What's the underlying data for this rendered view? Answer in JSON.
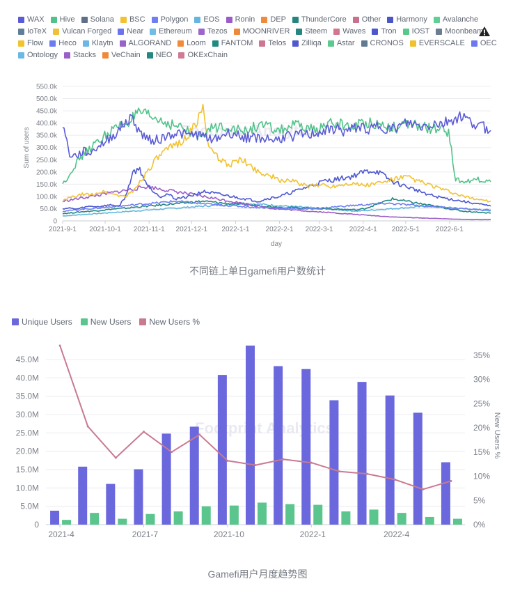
{
  "chart_data": [
    {
      "type": "line",
      "legend": [
        {
          "name": "WAX",
          "color": "#5b5bd6"
        },
        {
          "name": "Hive",
          "color": "#51c28a"
        },
        {
          "name": "Solana",
          "color": "#5f6f88"
        },
        {
          "name": "BSC",
          "color": "#f2c230"
        },
        {
          "name": "Polygon",
          "color": "#6f7ff2"
        },
        {
          "name": "EOS",
          "color": "#62b6e0"
        },
        {
          "name": "Ronin",
          "color": "#9b5cc9"
        },
        {
          "name": "DEP",
          "color": "#f08a3c"
        },
        {
          "name": "ThunderCore",
          "color": "#23867f"
        },
        {
          "name": "Other",
          "color": "#c9708d"
        },
        {
          "name": "Harmony",
          "color": "#4b55c8"
        },
        {
          "name": "Avalanche",
          "color": "#5fcf93"
        },
        {
          "name": "IoTeX",
          "color": "#5f7f98"
        },
        {
          "name": "Vulcan Forged",
          "color": "#efc13a"
        },
        {
          "name": "Near",
          "color": "#6b74ee"
        },
        {
          "name": "Ethereum",
          "color": "#6ebde6"
        },
        {
          "name": "Tezos",
          "color": "#9c66cc"
        },
        {
          "name": "MOONRIVER",
          "color": "#f0883a"
        },
        {
          "name": "Steem",
          "color": "#25877f"
        },
        {
          "name": "Waves",
          "color": "#d17891"
        },
        {
          "name": "Tron",
          "color": "#4c57cf"
        },
        {
          "name": "IOST",
          "color": "#59c98b"
        },
        {
          "name": "Moonbeam",
          "color": "#6a7d92"
        },
        {
          "name": "Flow",
          "color": "#f2c32c"
        },
        {
          "name": "Heco",
          "color": "#6b7cf0"
        },
        {
          "name": "Klaytn",
          "color": "#6ab8e3"
        },
        {
          "name": "ALGORAND",
          "color": "#9a63c9"
        },
        {
          "name": "Loom",
          "color": "#f18b3b"
        },
        {
          "name": "FANTOM",
          "color": "#208a82"
        },
        {
          "name": "Telos",
          "color": "#cf7792"
        },
        {
          "name": "Zilliqa",
          "color": "#5058d0"
        },
        {
          "name": "Astar",
          "color": "#5cc98e"
        },
        {
          "name": "CRONOS",
          "color": "#607a92"
        },
        {
          "name": "EVERSCALE",
          "color": "#f0c12f"
        },
        {
          "name": "OEC",
          "color": "#6c78ef"
        },
        {
          "name": "Ontology",
          "color": "#6ab9e4"
        },
        {
          "name": "Stacks",
          "color": "#9c5fc8"
        },
        {
          "name": "VeChain",
          "color": "#f08a3a"
        },
        {
          "name": "NEO",
          "color": "#248880"
        },
        {
          "name": "OKExChain",
          "color": "#d07a93"
        }
      ],
      "ylabel": "Sum of users",
      "xlabel": "day",
      "yticks": [
        "0",
        "50.0k",
        "100.0k",
        "150.0k",
        "200.0k",
        "250.0k",
        "300.0k",
        "350.0k",
        "400.0k",
        "450.0k",
        "500.0k",
        "550.0k"
      ],
      "ylim": [
        0,
        550000
      ],
      "xticks": [
        "2021-9-1",
        "2021-10-1",
        "2021-11-1",
        "2021-12-1",
        "2022-1-1",
        "2022-2-1",
        "2022-3-1",
        "2022-4-1",
        "2022-5-1",
        "2022-6-1"
      ],
      "x_range": [
        "2021-9-1",
        "2022-6-30"
      ],
      "series": [
        {
          "name": "WAX",
          "values": [
            400000,
            270000,
            265000,
            285000,
            275000,
            305000,
            320000,
            345000,
            370000,
            405000,
            420000,
            360000,
            340000,
            330000,
            335000,
            350000,
            360000,
            355000,
            350000,
            355000,
            345000,
            340000,
            335000,
            355000,
            360000,
            350000,
            340000,
            345000,
            335000,
            340000,
            330000,
            335000,
            350000,
            345000,
            355000,
            350000,
            360000,
            365000,
            370000,
            380000,
            365000,
            370000,
            385000,
            380000,
            375000,
            390000,
            380000,
            375000,
            385000,
            400000,
            395000,
            385000,
            390000,
            400000,
            395000,
            410000,
            420000,
            430000,
            405000,
            395000,
            385000,
            370000
          ]
        },
        {
          "name": "Hive",
          "values": [
            150000,
            190000,
            240000,
            270000,
            300000,
            320000,
            350000,
            370000,
            385000,
            400000,
            420000,
            440000,
            430000,
            420000,
            410000,
            400000,
            390000,
            380000,
            360000,
            345000,
            360000,
            375000,
            380000,
            390000,
            385000,
            370000,
            365000,
            380000,
            390000,
            385000,
            375000,
            370000,
            380000,
            390000,
            385000,
            375000,
            370000,
            385000,
            395000,
            400000,
            390000,
            385000,
            395000,
            400000,
            405000,
            395000,
            390000,
            385000,
            380000,
            390000,
            395000,
            385000,
            380000,
            375000,
            370000,
            365000,
            170000,
            160000,
            165000,
            170000,
            165000,
            160000
          ]
        },
        {
          "name": "BSC",
          "values": [
            80000,
            95000,
            100000,
            110000,
            105000,
            115000,
            120000,
            110000,
            105000,
            100000,
            120000,
            160000,
            200000,
            240000,
            270000,
            290000,
            310000,
            330000,
            350000,
            400000,
            460000,
            290000,
            260000,
            240000,
            230000,
            250000,
            240000,
            220000,
            200000,
            190000,
            180000,
            160000,
            170000,
            160000,
            150000,
            140000,
            145000,
            150000,
            140000,
            145000,
            150000,
            155000,
            150000,
            145000,
            150000,
            155000,
            160000,
            170000,
            175000,
            180000,
            170000,
            160000,
            150000,
            140000,
            130000,
            120000,
            110000,
            100000,
            95000,
            90000,
            85000,
            80000
          ]
        },
        {
          "name": "Tron",
          "values": [
            50000,
            52000,
            48000,
            55000,
            60000,
            58000,
            62000,
            65000,
            60000,
            100000,
            200000,
            210000,
            150000,
            120000,
            100000,
            110000,
            90000,
            95000,
            100000,
            110000,
            120000,
            115000,
            110000,
            105000,
            100000,
            95000,
            90000,
            85000,
            80000,
            90000,
            95000,
            100000,
            110000,
            120000,
            130000,
            140000,
            150000,
            160000,
            165000,
            170000,
            175000,
            180000,
            190000,
            200000,
            205000,
            200000,
            180000,
            160000,
            150000,
            140000,
            130000,
            120000,
            110000,
            100000,
            95000,
            90000,
            85000,
            80000,
            75000,
            70000,
            65000,
            60000
          ]
        },
        {
          "name": "Polygon",
          "values": [
            40000,
            42000,
            45000,
            48000,
            50000,
            52000,
            55000,
            58000,
            60000,
            62000,
            65000,
            68000,
            70000,
            72000,
            75000,
            78000,
            80000,
            78000,
            75000,
            72000,
            70000,
            68000,
            66000,
            64000,
            62000,
            60000,
            58000,
            56000,
            55000,
            54000,
            53000,
            52000,
            51000,
            50000,
            49000,
            48000,
            50000,
            52000,
            55000,
            58000,
            60000,
            62000,
            64000,
            66000,
            68000,
            70000,
            72000,
            70000,
            68000,
            66000,
            64000,
            62000,
            60000,
            58000,
            56000,
            54000,
            52000,
            50000,
            48000,
            46000,
            45000,
            44000
          ]
        },
        {
          "name": "Ronin",
          "values": [
            80000,
            85000,
            90000,
            95000,
            100000,
            105000,
            110000,
            115000,
            120000,
            125000,
            130000,
            135000,
            140000,
            135000,
            130000,
            125000,
            120000,
            115000,
            110000,
            105000,
            100000,
            95000,
            90000,
            85000,
            80000,
            75000,
            70000,
            65000,
            60000,
            55000,
            50000,
            48000,
            46000,
            44000,
            42000,
            40000,
            38000,
            36000,
            34000,
            32000,
            30000,
            28000,
            26000,
            24000,
            22000,
            20000,
            18000,
            16000,
            15000,
            14000,
            13000,
            12000,
            11000,
            10000,
            9000,
            8000,
            7000,
            6000,
            5000,
            5000,
            5000,
            5000
          ]
        },
        {
          "name": "ThunderCore",
          "values": [
            30000,
            32000,
            35000,
            38000,
            40000,
            42000,
            45000,
            48000,
            50000,
            52000,
            55000,
            58000,
            60000,
            62000,
            65000,
            68000,
            70000,
            72000,
            75000,
            78000,
            80000,
            78000,
            75000,
            72000,
            70000,
            68000,
            66000,
            64000,
            62000,
            60000,
            58000,
            56000,
            55000,
            54000,
            53000,
            52000,
            51000,
            50000,
            49000,
            48000,
            47000,
            46000,
            45000,
            50000,
            60000,
            70000,
            80000,
            90000,
            85000,
            80000,
            75000,
            70000,
            65000,
            60000,
            55000,
            50000,
            45000,
            40000,
            38000,
            36000,
            34000,
            32000
          ]
        },
        {
          "name": "EOS",
          "values": [
            20000,
            22000,
            24000,
            26000,
            28000,
            30000,
            32000,
            34000,
            36000,
            38000,
            40000,
            42000,
            44000,
            46000,
            48000,
            50000,
            52000,
            54000,
            56000,
            58000,
            60000,
            62000,
            64000,
            66000,
            68000,
            70000,
            72000,
            70000,
            68000,
            66000,
            64000,
            62000,
            60000,
            58000,
            56000,
            54000,
            52000,
            50000,
            48000,
            46000,
            44000,
            42000,
            40000,
            42000,
            44000,
            46000,
            48000,
            50000,
            52000,
            54000,
            56000,
            58000,
            60000,
            58000,
            56000,
            54000,
            52000,
            50000,
            48000,
            46000,
            44000,
            42000
          ]
        }
      ]
    },
    {
      "type": "bar",
      "legend": [
        "Unique Users",
        "New Users",
        "New Users %"
      ],
      "colors": {
        "unique": "#6a68dc",
        "new": "#5bc58e",
        "pct": "#c97a91"
      },
      "categories": [
        "2021-4",
        "2021-5",
        "2021-6",
        "2021-7",
        "2021-8",
        "2021-9",
        "2021-10",
        "2021-11",
        "2021-12",
        "2022-1",
        "2022-2",
        "2022-3",
        "2022-4",
        "2022-5",
        "2022-6"
      ],
      "xtick_labels": [
        "2021-4",
        "2021-7",
        "2021-10",
        "2022-1",
        "2022-4"
      ],
      "series": [
        {
          "name": "Unique Users",
          "axis": "left",
          "values": [
            3.8,
            15.8,
            11.1,
            15.1,
            24.8,
            26.7,
            40.8,
            48.8,
            43.2,
            42.4,
            33.9,
            38.9,
            35.2,
            30.5,
            17.0
          ]
        },
        {
          "name": "New Users",
          "axis": "left",
          "values": [
            1.3,
            3.2,
            1.6,
            2.9,
            3.6,
            5.0,
            5.2,
            6.0,
            5.6,
            5.4,
            3.6,
            4.1,
            3.2,
            2.1,
            1.6
          ]
        },
        {
          "name": "New Users %",
          "axis": "right",
          "values": [
            37.0,
            20.3,
            13.8,
            19.2,
            15.0,
            18.6,
            13.2,
            12.3,
            13.5,
            12.8,
            11.0,
            10.5,
            9.3,
            7.3,
            9.0
          ]
        }
      ],
      "ylabel_right": "New Users %",
      "yticks_left": [
        "0",
        "5.0M",
        "10.0M",
        "15.0M",
        "20.0M",
        "25.0M",
        "30.0M",
        "35.0M",
        "40.0M",
        "45.0M"
      ],
      "yticks_right": [
        "0%",
        "5%",
        "10%",
        "15%",
        "20%",
        "25%",
        "30%",
        "35%"
      ],
      "ylim_left": [
        0,
        48.8
      ],
      "ylim_right": [
        0,
        37
      ]
    }
  ],
  "captions": {
    "chart1": "不同链上单日gamefi用户数统计",
    "chart2": "Gamefi用户月度趋势图"
  },
  "watermark": "Footprint Analytics"
}
